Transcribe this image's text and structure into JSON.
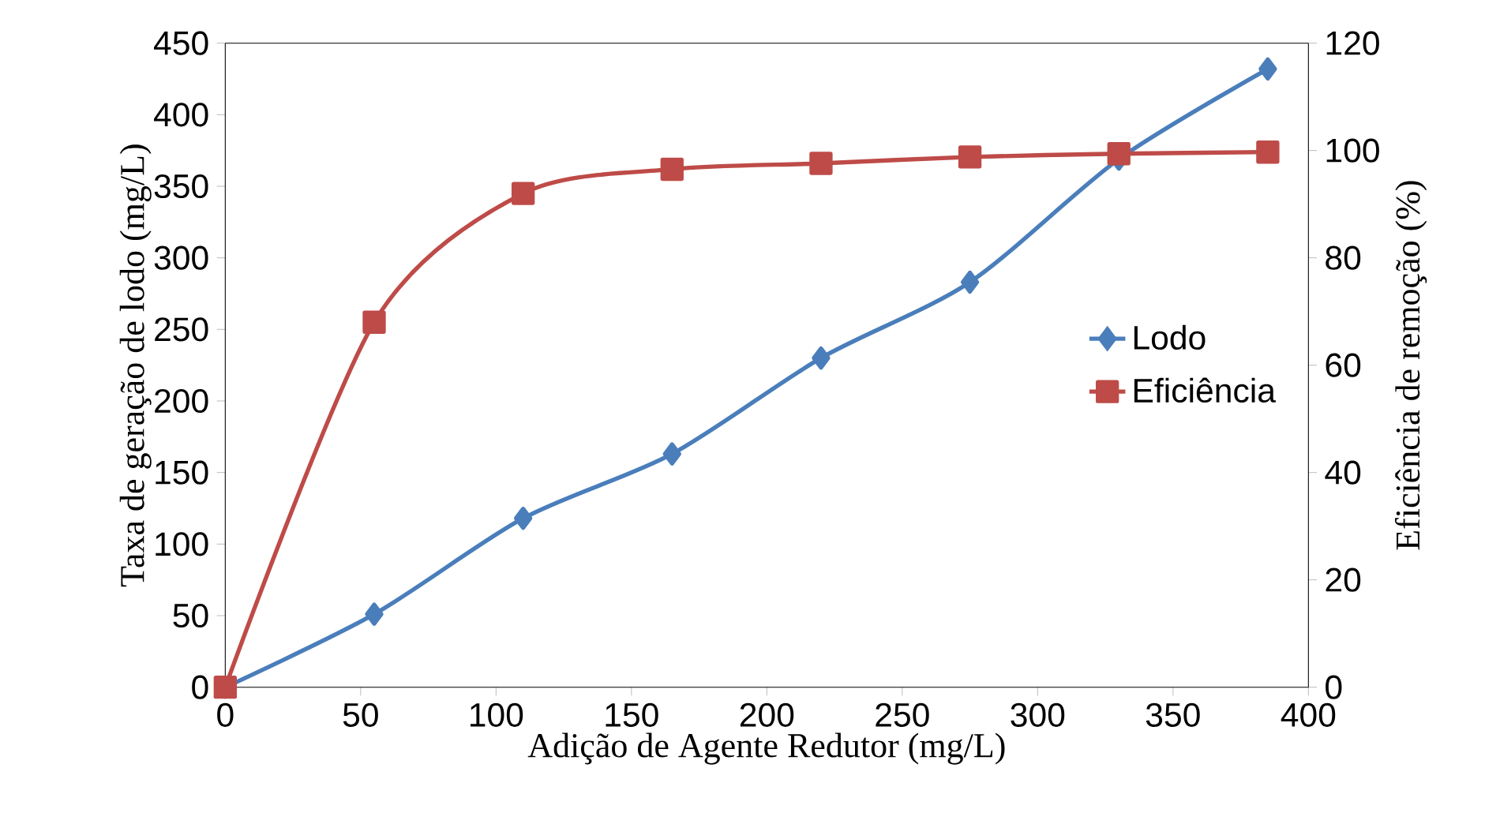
{
  "chart_data": {
    "type": "line",
    "xlabel": "Adição de Agente Redutor (mg/L)",
    "ylabel": "Taxa de geração de lodo (mg/L)",
    "y2label": "Eficiência de remoção  (%)",
    "x": [
      0,
      55,
      110,
      165,
      220,
      275,
      330,
      385
    ],
    "series": [
      {
        "name": "Lodo",
        "color": "#4a7ebb",
        "marker": "diamond",
        "values": [
          0,
          51,
          118,
          163,
          230,
          283,
          369,
          432
        ]
      },
      {
        "name": "Eficiência",
        "color": "#be4b48",
        "marker": "square",
        "axis": "y2",
        "values": [
          0,
          68,
          92,
          96.5,
          97.6,
          98.8,
          99.4,
          99.7
        ]
      }
    ],
    "xlim": [
      0,
      400
    ],
    "xticks": [
      0,
      50,
      100,
      150,
      200,
      250,
      300,
      350,
      400
    ],
    "ylim": [
      0,
      450
    ],
    "yticks": [
      0,
      50,
      100,
      150,
      200,
      250,
      300,
      350,
      400,
      450
    ],
    "y2lim": [
      0,
      120
    ],
    "y2ticks": [
      0,
      20,
      40,
      60,
      80,
      100,
      120
    ],
    "legend": "right",
    "grid": false,
    "line_style": "solid"
  }
}
